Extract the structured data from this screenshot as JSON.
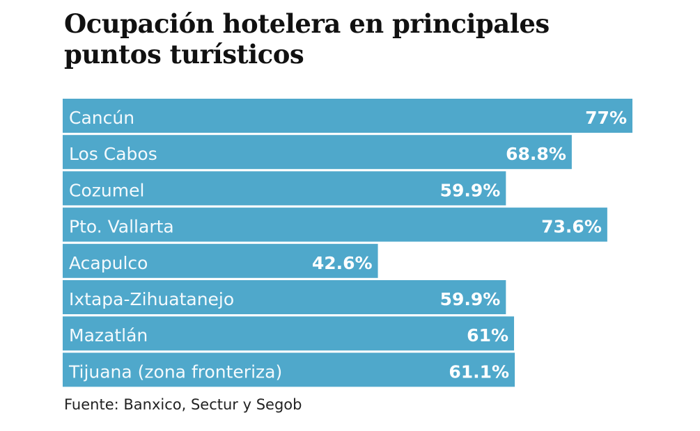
{
  "chart_data": {
    "type": "bar",
    "orientation": "horizontal",
    "title_lines": [
      "Ocupación hotelera en principales",
      "puntos turísticos"
    ],
    "categories": [
      "Cancún",
      "Los Cabos",
      "Cozumel",
      "Pto. Vallarta",
      "Acapulco",
      "Ixtapa-Zihuatanejo",
      "Mazatlán",
      "Tijuana (zona fronteriza)"
    ],
    "values": [
      77,
      68.8,
      59.9,
      73.6,
      42.6,
      59.9,
      61,
      61.1
    ],
    "data_labels": [
      "77%",
      "68.8%",
      "59.9%",
      "73.6%",
      "42.6%",
      "59.9%",
      "61%",
      "61.1%"
    ],
    "unit": "%",
    "xlim": [
      0,
      77
    ],
    "grid": false,
    "bar_color": "#4fa8cb",
    "source": "Fuente: Banxico, Sectur y Segob"
  }
}
